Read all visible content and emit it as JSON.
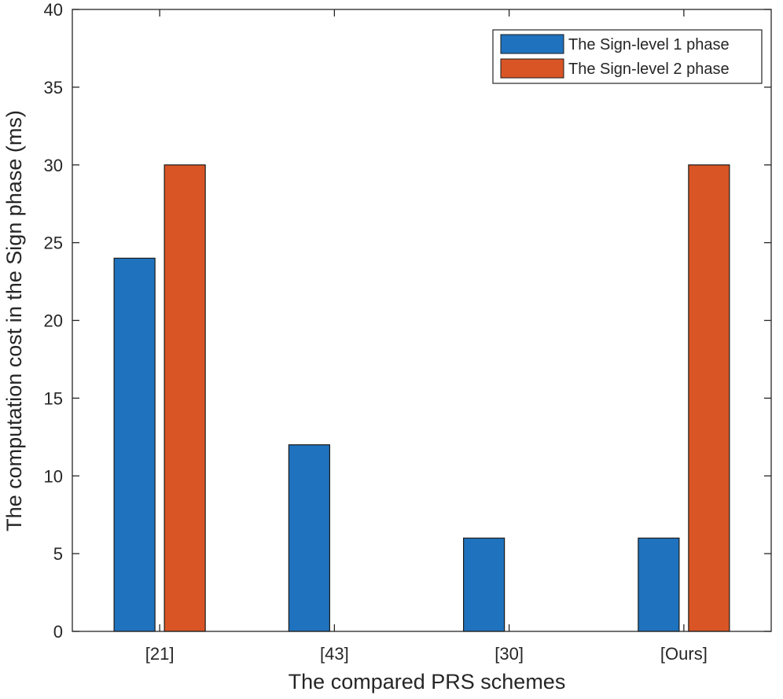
{
  "chart_data": {
    "type": "bar",
    "categories": [
      "[21]",
      "[43]",
      "[30]",
      "[Ours]"
    ],
    "series": [
      {
        "name": "The Sign-level 1 phase",
        "values": [
          24,
          12,
          6,
          6
        ],
        "color": "#1f72bd"
      },
      {
        "name": "The Sign-level 2 phase",
        "values": [
          30,
          0,
          0,
          30
        ],
        "color": "#d95525"
      }
    ],
    "xlabel": "The compared PRS schemes",
    "ylabel": "The computation cost in the Sign phase (ms)",
    "ylim": [
      0,
      40
    ],
    "yticks": [
      0,
      5,
      10,
      15,
      20,
      25,
      30,
      35,
      40
    ],
    "grid": false,
    "legend_position": "top-right"
  }
}
